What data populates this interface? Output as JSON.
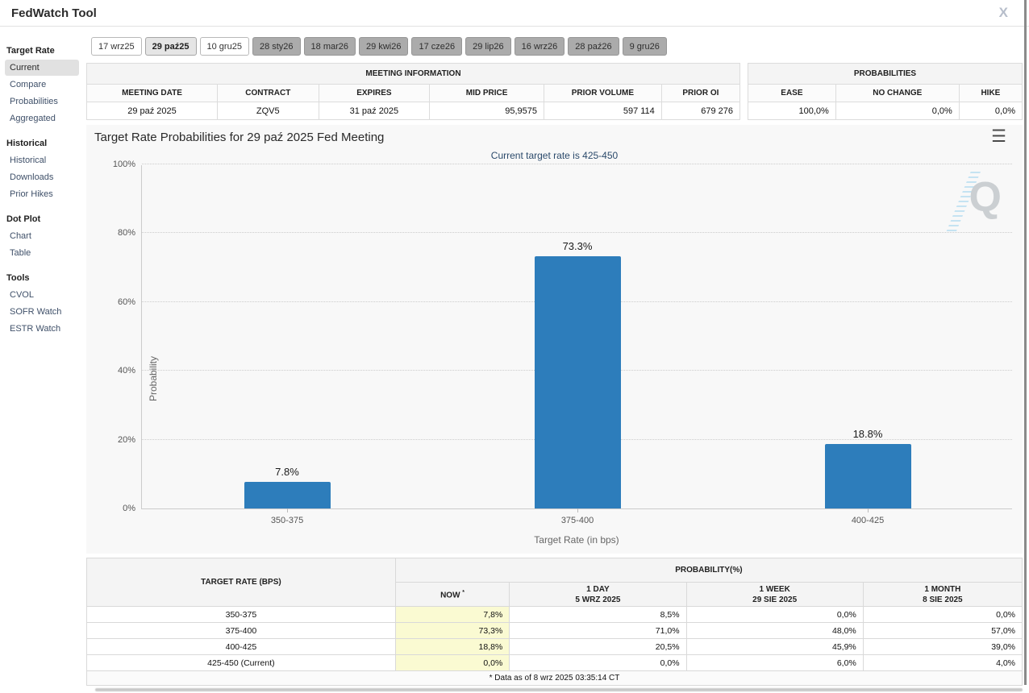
{
  "window": {
    "title": "FedWatch Tool",
    "close_icon": "X"
  },
  "sidebar": {
    "sections": [
      {
        "heading": "Target Rate",
        "items": [
          {
            "label": "Current",
            "selected": true
          },
          {
            "label": "Compare",
            "selected": false
          },
          {
            "label": "Probabilities",
            "selected": false
          },
          {
            "label": "Aggregated",
            "selected": false
          }
        ]
      },
      {
        "heading": "Historical",
        "items": [
          {
            "label": "Historical",
            "selected": false
          },
          {
            "label": "Downloads",
            "selected": false
          },
          {
            "label": "Prior Hikes",
            "selected": false
          }
        ]
      },
      {
        "heading": "Dot Plot",
        "items": [
          {
            "label": "Chart",
            "selected": false
          },
          {
            "label": "Table",
            "selected": false
          }
        ]
      },
      {
        "heading": "Tools",
        "items": [
          {
            "label": "CVOL",
            "selected": false
          },
          {
            "label": "SOFR Watch",
            "selected": false
          },
          {
            "label": "ESTR Watch",
            "selected": false
          }
        ]
      }
    ]
  },
  "date_tabs": [
    {
      "label": "17 wrz25",
      "style": "near"
    },
    {
      "label": "29 paź25",
      "style": "selected"
    },
    {
      "label": "10 gru25",
      "style": "near"
    },
    {
      "label": "28 sty26",
      "style": "far"
    },
    {
      "label": "18 mar26",
      "style": "far"
    },
    {
      "label": "29 kwi26",
      "style": "far"
    },
    {
      "label": "17 cze26",
      "style": "far"
    },
    {
      "label": "29 lip26",
      "style": "far"
    },
    {
      "label": "16 wrz26",
      "style": "far"
    },
    {
      "label": "28 paź26",
      "style": "far"
    },
    {
      "label": "9 gru26",
      "style": "far"
    }
  ],
  "meeting_info": {
    "title": "MEETING INFORMATION",
    "columns": [
      "MEETING DATE",
      "CONTRACT",
      "EXPIRES",
      "MID PRICE",
      "PRIOR VOLUME",
      "PRIOR OI"
    ],
    "values": [
      "29 paź 2025",
      "ZQV5",
      "31 paź 2025",
      "95,9575",
      "597 114",
      "679 276"
    ],
    "align": [
      "center",
      "center",
      "center",
      "right",
      "right",
      "right"
    ],
    "col_widths_pct": [
      20,
      15.5,
      17,
      17.5,
      18,
      12
    ]
  },
  "probabilities_summary": {
    "title": "PROBABILITIES",
    "columns": [
      "EASE",
      "NO CHANGE",
      "HIKE"
    ],
    "values": [
      "100,0%",
      "0,0%",
      "0,0%"
    ],
    "align": [
      "right",
      "right",
      "right"
    ],
    "col_widths_pct": [
      32,
      45,
      23
    ]
  },
  "chart_data": {
    "type": "bar",
    "title": "Target Rate Probabilities for 29 paź 2025 Fed Meeting",
    "subtitle": "Current target rate is 425-450",
    "categories": [
      "350-375",
      "375-400",
      "400-425"
    ],
    "values": [
      7.8,
      73.3,
      18.8
    ],
    "bar_labels": [
      "7.8%",
      "73.3%",
      "18.8%"
    ],
    "xlabel": "Target Rate (in bps)",
    "ylabel": "Probability",
    "ylim": [
      0,
      100
    ],
    "ytick_labels": [
      "0%",
      "20%",
      "40%",
      "60%",
      "80%",
      "100%"
    ],
    "grid": "horizontal dotted",
    "legend": "none",
    "bar_color": "#2d7dbb",
    "watermark": "Q"
  },
  "probability_table": {
    "row_header": "TARGET RATE (BPS)",
    "group_header": "PROBABILITY(%)",
    "columns": [
      {
        "label": "NOW",
        "date": "",
        "sup": "*"
      },
      {
        "label": "1 DAY",
        "date": "5 WRZ 2025",
        "sup": ""
      },
      {
        "label": "1 WEEK",
        "date": "29 SIE 2025",
        "sup": ""
      },
      {
        "label": "1 MONTH",
        "date": "8 SIE 2025",
        "sup": ""
      }
    ],
    "rows": [
      {
        "rate": "350-375",
        "cells": [
          "7,8%",
          "8,5%",
          "0,0%",
          "0,0%"
        ]
      },
      {
        "rate": "375-400",
        "cells": [
          "73,3%",
          "71,0%",
          "48,0%",
          "57,0%"
        ]
      },
      {
        "rate": "400-425",
        "cells": [
          "18,8%",
          "20,5%",
          "45,9%",
          "39,0%"
        ]
      },
      {
        "rate": "425-450 (Current)",
        "cells": [
          "0,0%",
          "0,0%",
          "6,0%",
          "4,0%"
        ]
      }
    ],
    "footnote": "* Data as of 8 wrz 2025 03:35:14 CT",
    "col_widths_pct": [
      33,
      12.2,
      18.9,
      18.9,
      17
    ]
  },
  "colors": {
    "bar": "#2d7dbb",
    "now_column_highlight": "#fafad2",
    "subtitle_text": "#2b4a6b",
    "sidebar_link": "#3f5069",
    "selected_item_bg": "#e1e1e1"
  }
}
